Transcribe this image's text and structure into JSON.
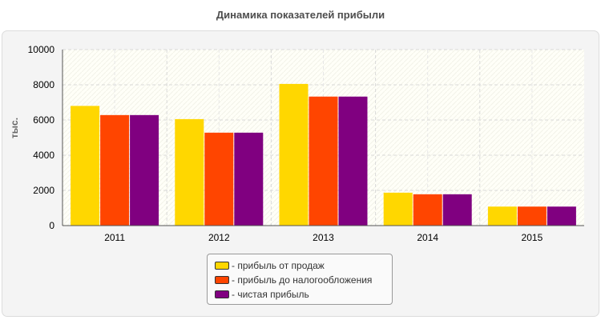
{
  "chart_data": {
    "type": "bar",
    "title": "Динамика показателей прибыли",
    "xlabel": "",
    "ylabel": "тыс.",
    "ylim": [
      0,
      10000
    ],
    "yticks": [
      0,
      2000,
      4000,
      6000,
      8000,
      10000
    ],
    "grid": true,
    "legend_position": "bottom-center",
    "categories": [
      "2011",
      "2012",
      "2013",
      "2014",
      "2015"
    ],
    "series": [
      {
        "name": "- прибыль от продаж",
        "color": "#ffd700",
        "values": [
          6800,
          6050,
          8050,
          1870,
          1080
        ]
      },
      {
        "name": "- прибыль до налогообложения",
        "color": "#ff4500",
        "values": [
          6280,
          5280,
          7330,
          1780,
          1080
        ]
      },
      {
        "name": "- чистая прибыль",
        "color": "#800080",
        "values": [
          6280,
          5280,
          7330,
          1780,
          1080
        ]
      }
    ]
  }
}
